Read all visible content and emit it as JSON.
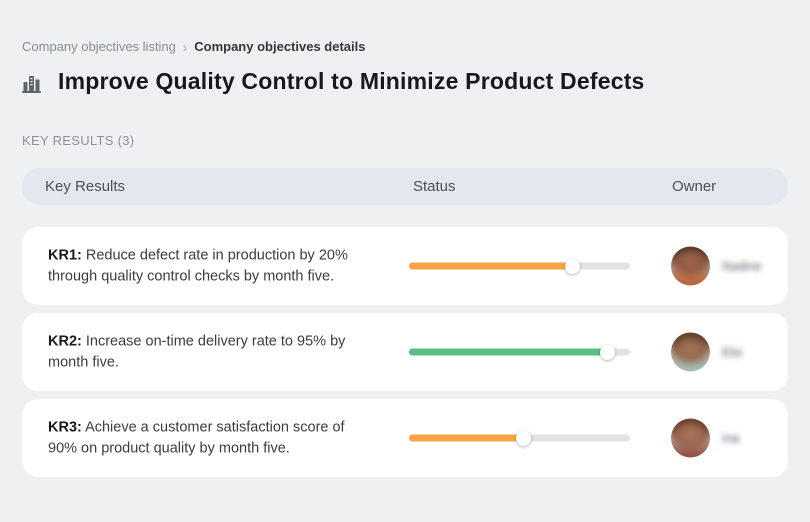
{
  "breadcrumb": {
    "separator": "›",
    "items": [
      {
        "label": "Company objectives listing"
      },
      {
        "label": "Company objectives details"
      }
    ]
  },
  "header": {
    "icon": "buildings-icon",
    "title": "Improve Quality Control to Minimize Product Defects"
  },
  "section": {
    "label": "KEY RESULTS (3)"
  },
  "table": {
    "columns": [
      "Key Results",
      "Status",
      "Owner"
    ],
    "rows": [
      {
        "kr_label": "KR1:",
        "kr_text": " Reduce defect rate in production by 20% through quality control checks by month five.",
        "progress_percent": 74,
        "progress_color": "#F9A441",
        "owner": {
          "name": "Nadine"
        }
      },
      {
        "kr_label": "KR2:",
        "kr_text": " Increase on-time delivery rate to 95% by month five.",
        "progress_percent": 90,
        "progress_color": "#57C083",
        "owner": {
          "name": "Elsi"
        }
      },
      {
        "kr_label": "KR3:",
        "kr_text": " Achieve a customer satisfaction score of 90% on product quality by month five.",
        "progress_percent": 52,
        "progress_color": "#F9A441",
        "owner": {
          "name": "Ina"
        }
      }
    ]
  },
  "colors": {
    "page_bg": "#EEF0F2",
    "table_header_bg": "#E3E8EE",
    "card_bg": "#FFFFFF",
    "progress_track": "#E2E2E3",
    "progress_orange": "#F9A441",
    "progress_green": "#57C083",
    "title_text": "#17191D"
  }
}
